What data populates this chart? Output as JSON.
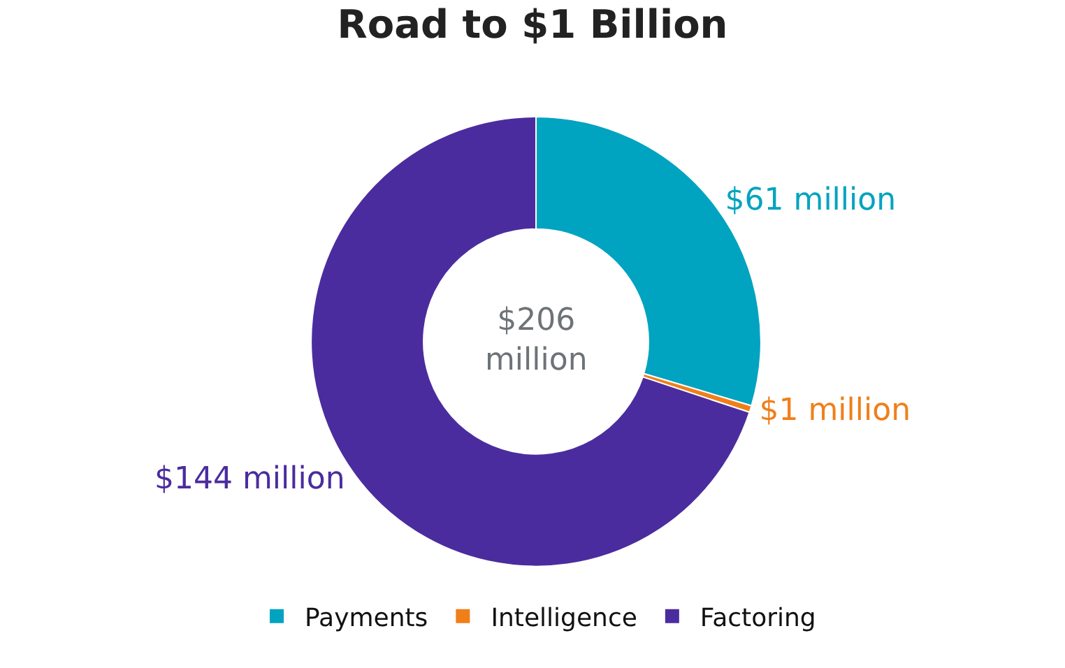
{
  "chart_data": {
    "type": "donut",
    "title": "Road to $1 Billion",
    "categories": [
      "Payments",
      "Intelligence",
      "Factoring"
    ],
    "values": [
      61,
      1,
      144
    ],
    "colors": [
      "#00a3c0",
      "#f07f1a",
      "#4b2c9e"
    ],
    "value_labels": [
      "$61 million",
      "$1 million",
      "$144 million"
    ],
    "annotations": [
      "$206\nmillion"
    ],
    "legend": "bottom"
  }
}
